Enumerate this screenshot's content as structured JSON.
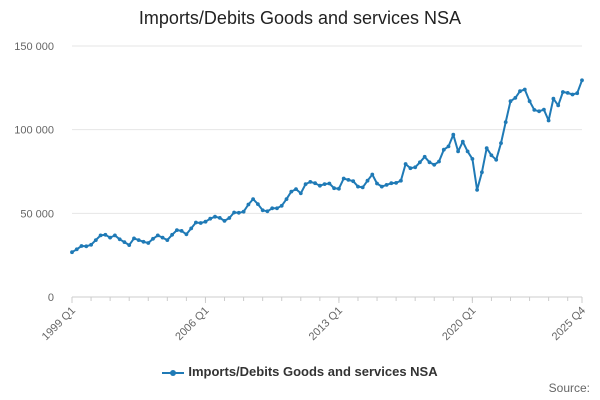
{
  "colors": {
    "series": "#1f7ab6",
    "grid": "#e6e6e6",
    "axis": "#cccccc"
  },
  "source_label": "Source:",
  "chart_data": {
    "type": "line",
    "title": "Imports/Debits Goods and services NSA",
    "xlabel": "",
    "ylabel": "",
    "ylim": [
      0,
      150000
    ],
    "yticks": [
      0,
      50000,
      100000,
      150000
    ],
    "ytick_labels": [
      "0",
      "50 000",
      "100 000",
      "150 000"
    ],
    "xtick_labels": [
      "1999 Q1",
      "2006 Q1",
      "2013 Q1",
      "2020 Q1",
      "2025 Q4"
    ],
    "xtick_index": [
      0,
      28,
      56,
      84,
      107
    ],
    "legend": "bottom-center",
    "grid": true,
    "series": [
      {
        "name": "Imports/Debits Goods and services NSA",
        "values": [
          26800,
          28500,
          30500,
          30300,
          31200,
          34000,
          36800,
          37200,
          35500,
          36800,
          34500,
          32800,
          31000,
          35000,
          34000,
          33000,
          32300,
          34800,
          36800,
          35500,
          34000,
          37200,
          40000,
          39500,
          37500,
          41000,
          44500,
          44200,
          45000,
          46800,
          48000,
          47300,
          45500,
          47200,
          50500,
          50300,
          51000,
          55300,
          58500,
          55500,
          51800,
          51200,
          53000,
          53000,
          54500,
          58500,
          63000,
          64500,
          62000,
          67500,
          68800,
          68000,
          66500,
          67500,
          67800,
          65000,
          64700,
          70800,
          70000,
          69200,
          66000,
          65500,
          69500,
          73200,
          67800,
          66000,
          67000,
          68000,
          68200,
          69500,
          79500,
          77000,
          77500,
          80500,
          83800,
          80500,
          79000,
          81000,
          88000,
          90000,
          97000,
          87000,
          92800,
          87000,
          82500,
          64000,
          74500,
          89000,
          84700,
          82000,
          92000,
          104500,
          117000,
          119000,
          123000,
          124000,
          117000,
          111800,
          111000,
          112000,
          105500,
          118500,
          114500,
          122500,
          122000,
          121000,
          121800,
          129500
        ]
      }
    ]
  }
}
